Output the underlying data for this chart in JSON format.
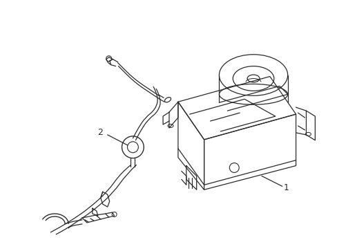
{
  "background_color": "#ffffff",
  "line_color": "#2a2a2a",
  "line_width": 0.9,
  "label_1": "1",
  "label_2": "2",
  "fig_width": 4.89,
  "fig_height": 3.6,
  "dpi": 100
}
